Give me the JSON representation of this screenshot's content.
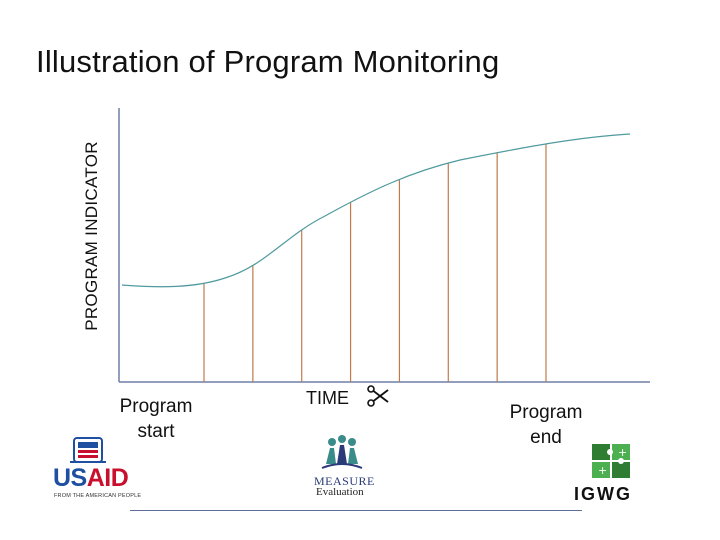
{
  "slide": {
    "title": "Illustration of Program Monitoring"
  },
  "chart_data": {
    "type": "line",
    "title": "Illustration of Program Monitoring",
    "ylabel": "PROGRAM INDICATOR",
    "xlabel": "TIME",
    "x_annotations": {
      "start": "Program start",
      "end": "Program end"
    },
    "curve": "s-shaped",
    "monitoring_points": 8,
    "colors": {
      "curve": "#4f9a9e",
      "drop_lines": "#c07a4a",
      "axes": "#6f7ea5"
    }
  },
  "labels": {
    "y_axis": "PROGRAM INDICATOR",
    "time": "TIME",
    "start_line1": "Program",
    "start_line2": "start",
    "end_line1": "Program",
    "end_line2": "end"
  },
  "logos": {
    "usaid_main_us": "US",
    "usaid_main_aid": "AID",
    "usaid_sub": "FROM THE AMERICAN PEOPLE",
    "measure_name": "MEASURE",
    "measure_sub": "Evaluation",
    "igwg": "IGWG"
  },
  "icons": {
    "scissors": "scissors-icon",
    "usaid_seal": "usaid-seal-icon",
    "measure_people": "people-group-icon",
    "igwg_mark": "puzzle-icon"
  }
}
